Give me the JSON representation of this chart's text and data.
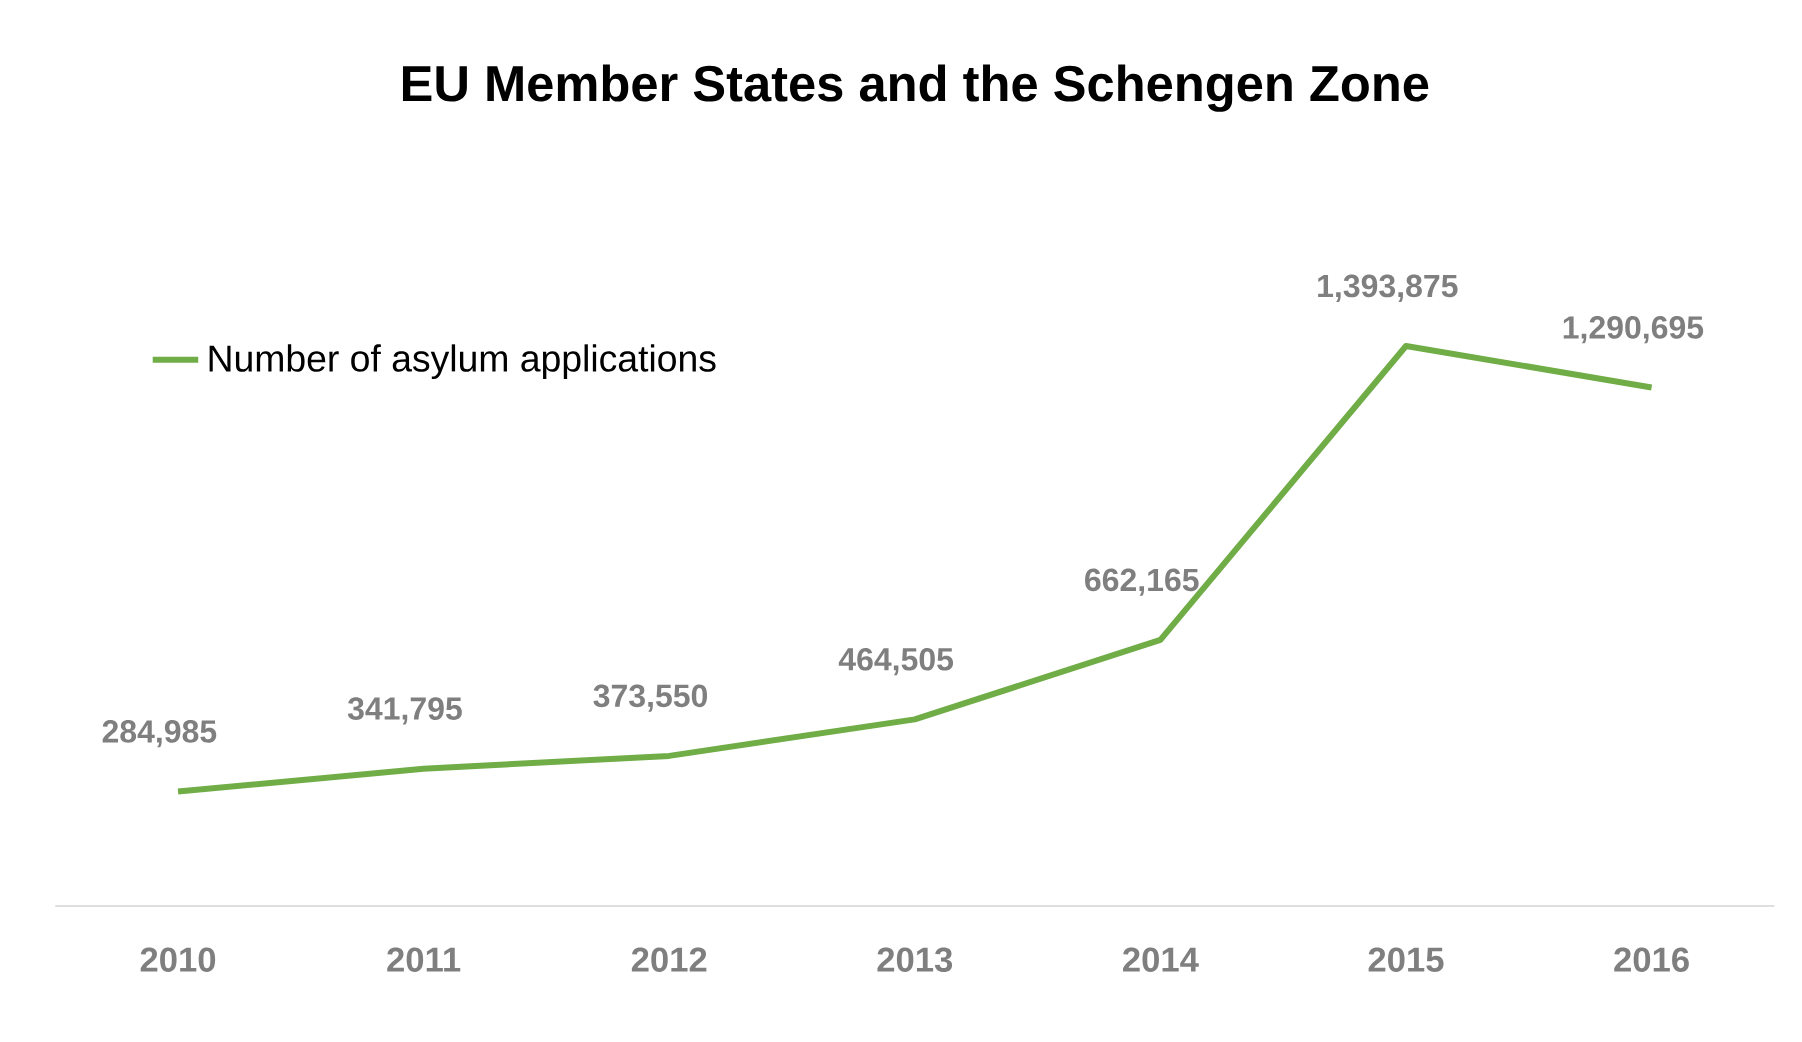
{
  "chart_data": {
    "type": "line",
    "title": "EU Member States and the Schengen Zone",
    "categories": [
      "2010",
      "2011",
      "2012",
      "2013",
      "2014",
      "2015",
      "2016"
    ],
    "series": [
      {
        "name": "Number of asylum applications",
        "color": "#70ad47",
        "values": [
          284985,
          341795,
          373550,
          464505,
          662165,
          1393875,
          1290695
        ],
        "value_labels": [
          "284,985",
          "341,795",
          "373,550",
          "464,505",
          "662,165",
          "1,393,875",
          "1,290,695"
        ]
      }
    ],
    "legend": "top left"
  }
}
